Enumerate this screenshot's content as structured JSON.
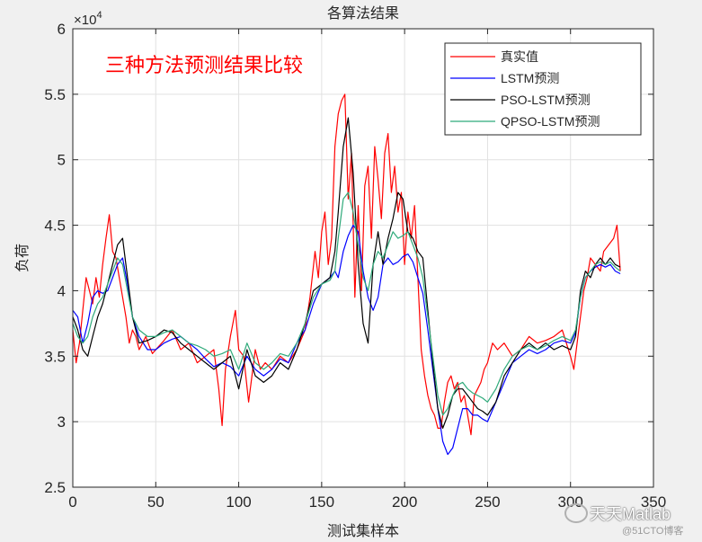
{
  "chart_data": {
    "type": "line",
    "title": "各算法结果",
    "xlabel": "测试集样本",
    "ylabel": "负荷",
    "exponent_label": "×10",
    "exponent_power": "4",
    "annotation": "三种方法预测结果比较",
    "xlim": [
      0,
      350
    ],
    "ylim": [
      2.5,
      6
    ],
    "xticks": [
      0,
      50,
      100,
      150,
      200,
      250,
      300,
      350
    ],
    "yticks": [
      2.5,
      3,
      3.5,
      4,
      4.5,
      5,
      5.5,
      6
    ],
    "grid": true,
    "legend_position": "top-right",
    "series": [
      {
        "name": "真实值",
        "color": "#ff0000",
        "x": [
          0,
          2,
          4,
          6,
          8,
          10,
          12,
          14,
          16,
          18,
          20,
          22,
          24,
          26,
          28,
          30,
          32,
          34,
          36,
          38,
          40,
          42,
          44,
          46,
          48,
          50,
          55,
          60,
          65,
          70,
          75,
          80,
          85,
          88,
          90,
          92,
          95,
          98,
          100,
          103,
          106,
          110,
          113,
          116,
          120,
          125,
          130,
          135,
          140,
          143,
          146,
          148,
          150,
          152,
          154,
          156,
          158,
          160,
          162,
          164,
          166,
          168,
          170,
          172,
          174,
          176,
          178,
          180,
          182,
          184,
          186,
          188,
          190,
          192,
          194,
          196,
          198,
          200,
          202,
          204,
          206,
          208,
          210,
          212,
          214,
          216,
          218,
          220,
          222,
          224,
          226,
          228,
          230,
          232,
          234,
          236,
          238,
          240,
          242,
          244,
          246,
          248,
          250,
          253,
          256,
          260,
          265,
          270,
          275,
          280,
          285,
          290,
          295,
          300,
          302,
          305,
          308,
          310,
          312,
          315,
          318,
          320,
          323,
          326,
          328,
          330
        ],
        "values": [
          3.7,
          3.45,
          3.6,
          3.85,
          4.1,
          4.0,
          3.9,
          4.1,
          3.95,
          4.2,
          4.4,
          4.58,
          4.3,
          4.25,
          4.1,
          3.95,
          3.8,
          3.6,
          3.7,
          3.65,
          3.55,
          3.6,
          3.65,
          3.58,
          3.52,
          3.55,
          3.62,
          3.7,
          3.55,
          3.6,
          3.45,
          3.5,
          3.55,
          3.25,
          2.97,
          3.4,
          3.65,
          3.85,
          3.55,
          3.5,
          3.15,
          3.55,
          3.4,
          3.45,
          3.4,
          3.5,
          3.45,
          3.55,
          3.7,
          3.95,
          4.3,
          4.1,
          4.45,
          4.6,
          4.2,
          4.4,
          5.1,
          5.35,
          5.45,
          5.5,
          4.7,
          5.05,
          3.95,
          4.65,
          4.0,
          4.8,
          4.95,
          4.4,
          5.1,
          4.85,
          4.55,
          5.05,
          5.2,
          4.75,
          4.95,
          4.6,
          4.75,
          4.2,
          4.6,
          4.4,
          4.65,
          4.1,
          3.55,
          3.35,
          3.2,
          3.1,
          3.05,
          2.95,
          2.95,
          3.15,
          3.3,
          3.35,
          3.25,
          3.3,
          3.15,
          3.2,
          3.05,
          2.9,
          3.2,
          3.25,
          3.3,
          3.4,
          3.45,
          3.6,
          3.55,
          3.6,
          3.5,
          3.55,
          3.65,
          3.6,
          3.62,
          3.65,
          3.7,
          3.5,
          3.4,
          3.7,
          4.0,
          4.1,
          4.25,
          4.2,
          4.15,
          4.3,
          4.35,
          4.4,
          4.5,
          4.15
        ]
      },
      {
        "name": "LSTM预测",
        "color": "#0000ff",
        "x": [
          0,
          3,
          6,
          9,
          12,
          15,
          18,
          21,
          24,
          27,
          30,
          33,
          36,
          40,
          45,
          50,
          55,
          60,
          65,
          70,
          75,
          80,
          85,
          90,
          95,
          100,
          105,
          110,
          115,
          120,
          125,
          130,
          135,
          140,
          145,
          150,
          155,
          158,
          160,
          163,
          166,
          169,
          172,
          175,
          178,
          181,
          184,
          187,
          190,
          193,
          196,
          199,
          202,
          205,
          208,
          211,
          214,
          217,
          220,
          223,
          226,
          229,
          232,
          235,
          238,
          241,
          244,
          247,
          250,
          255,
          260,
          265,
          270,
          275,
          280,
          285,
          290,
          295,
          300,
          303,
          306,
          309,
          312,
          315,
          318,
          321,
          324,
          327,
          330
        ],
        "values": [
          3.85,
          3.8,
          3.6,
          3.75,
          3.95,
          4.0,
          3.98,
          4.0,
          4.1,
          4.2,
          4.25,
          4.05,
          3.8,
          3.65,
          3.55,
          3.55,
          3.6,
          3.63,
          3.65,
          3.6,
          3.55,
          3.48,
          3.42,
          3.45,
          3.42,
          3.35,
          3.5,
          3.4,
          3.35,
          3.4,
          3.48,
          3.45,
          3.6,
          3.7,
          3.9,
          4.05,
          4.1,
          4.15,
          4.1,
          4.3,
          4.42,
          4.5,
          4.45,
          4.15,
          3.95,
          3.85,
          3.95,
          4.2,
          4.25,
          4.2,
          4.22,
          4.26,
          4.28,
          4.22,
          4.1,
          3.98,
          3.7,
          3.4,
          3.1,
          2.85,
          2.75,
          2.8,
          2.95,
          3.1,
          3.1,
          3.05,
          3.05,
          3.02,
          3.0,
          3.15,
          3.3,
          3.45,
          3.5,
          3.55,
          3.52,
          3.55,
          3.6,
          3.62,
          3.6,
          3.68,
          3.95,
          4.1,
          4.15,
          4.18,
          4.2,
          4.18,
          4.2,
          4.15,
          4.13
        ]
      },
      {
        "name": "PSO-LSTM预测",
        "color": "#000000",
        "x": [
          0,
          3,
          6,
          9,
          12,
          15,
          18,
          21,
          24,
          27,
          30,
          33,
          36,
          40,
          45,
          50,
          55,
          60,
          65,
          70,
          75,
          80,
          85,
          90,
          95,
          100,
          105,
          110,
          115,
          120,
          125,
          130,
          135,
          140,
          145,
          150,
          155,
          158,
          160,
          163,
          166,
          169,
          172,
          175,
          178,
          181,
          184,
          187,
          190,
          193,
          196,
          199,
          202,
          205,
          208,
          211,
          214,
          217,
          220,
          223,
          226,
          229,
          232,
          235,
          238,
          241,
          244,
          247,
          250,
          255,
          260,
          265,
          270,
          275,
          280,
          285,
          290,
          295,
          300,
          303,
          306,
          309,
          312,
          315,
          318,
          321,
          324,
          327,
          330
        ],
        "values": [
          3.8,
          3.7,
          3.55,
          3.5,
          3.65,
          3.8,
          3.9,
          4.05,
          4.2,
          4.35,
          4.4,
          4.1,
          3.8,
          3.6,
          3.62,
          3.65,
          3.7,
          3.68,
          3.6,
          3.55,
          3.5,
          3.45,
          3.4,
          3.45,
          3.5,
          3.25,
          3.55,
          3.35,
          3.3,
          3.35,
          3.45,
          3.4,
          3.55,
          3.75,
          4.0,
          4.05,
          4.1,
          4.3,
          4.6,
          5.1,
          5.32,
          4.9,
          4.2,
          3.75,
          3.6,
          4.2,
          4.45,
          4.2,
          4.4,
          4.55,
          4.75,
          4.7,
          4.45,
          4.4,
          4.3,
          4.25,
          3.85,
          3.45,
          3.1,
          2.95,
          3.05,
          3.2,
          3.25,
          3.25,
          3.2,
          3.15,
          3.1,
          3.08,
          3.05,
          3.15,
          3.35,
          3.45,
          3.55,
          3.6,
          3.55,
          3.6,
          3.55,
          3.58,
          3.55,
          3.65,
          4.0,
          4.15,
          4.1,
          4.2,
          4.25,
          4.2,
          4.25,
          4.2,
          4.18
        ]
      },
      {
        "name": "QPSO-LSTM预测",
        "color": "#2eaa7a",
        "x": [
          0,
          3,
          6,
          9,
          12,
          15,
          18,
          21,
          24,
          27,
          30,
          33,
          36,
          40,
          45,
          50,
          55,
          60,
          65,
          70,
          75,
          80,
          85,
          90,
          95,
          100,
          105,
          110,
          115,
          120,
          125,
          130,
          135,
          140,
          145,
          150,
          155,
          158,
          160,
          163,
          166,
          169,
          172,
          175,
          178,
          181,
          184,
          187,
          190,
          193,
          196,
          199,
          202,
          205,
          208,
          211,
          214,
          217,
          220,
          223,
          226,
          229,
          232,
          235,
          238,
          241,
          244,
          247,
          250,
          255,
          260,
          265,
          270,
          275,
          280,
          285,
          290,
          295,
          300,
          303,
          306,
          309,
          312,
          315,
          318,
          321,
          324,
          327,
          330
        ],
        "values": [
          3.75,
          3.65,
          3.6,
          3.65,
          3.8,
          3.9,
          3.95,
          4.05,
          4.15,
          4.25,
          4.2,
          4.0,
          3.8,
          3.7,
          3.65,
          3.65,
          3.68,
          3.7,
          3.65,
          3.6,
          3.58,
          3.55,
          3.5,
          3.52,
          3.55,
          3.4,
          3.6,
          3.45,
          3.4,
          3.45,
          3.52,
          3.5,
          3.6,
          3.75,
          3.95,
          4.05,
          4.08,
          4.15,
          4.4,
          4.7,
          4.75,
          4.6,
          4.35,
          4.1,
          4.0,
          4.2,
          4.3,
          4.25,
          4.35,
          4.45,
          4.4,
          4.42,
          4.45,
          4.35,
          4.25,
          4.1,
          3.8,
          3.5,
          3.2,
          3.05,
          3.1,
          3.2,
          3.28,
          3.3,
          3.25,
          3.22,
          3.2,
          3.18,
          3.15,
          3.25,
          3.4,
          3.5,
          3.55,
          3.58,
          3.55,
          3.58,
          3.62,
          3.65,
          3.62,
          3.7,
          3.95,
          4.1,
          4.15,
          4.2,
          4.22,
          4.2,
          4.22,
          4.18,
          4.15
        ]
      }
    ]
  },
  "watermark": {
    "channel": "天天Matlab",
    "site": "@51CTO博客"
  }
}
